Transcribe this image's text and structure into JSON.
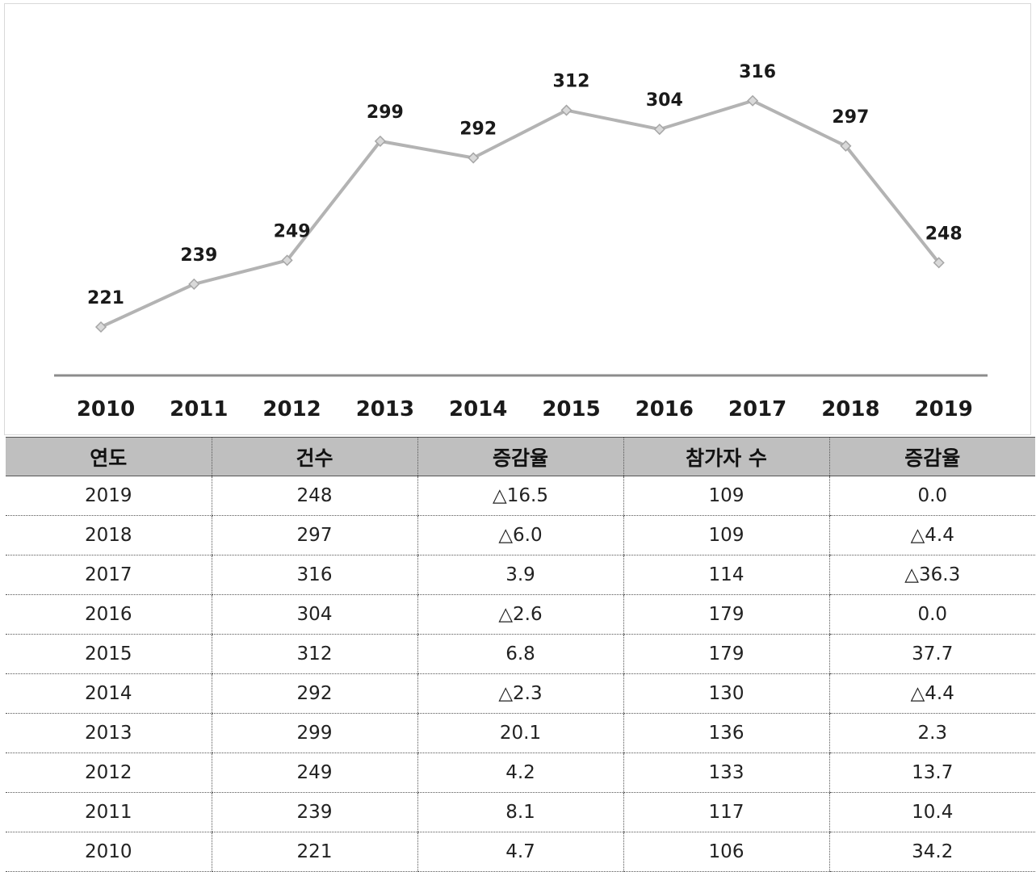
{
  "chart_data": {
    "type": "line",
    "categories": [
      "2010",
      "2011",
      "2012",
      "2013",
      "2014",
      "2015",
      "2016",
      "2017",
      "2018",
      "2019"
    ],
    "values": [
      221,
      239,
      249,
      299,
      292,
      312,
      304,
      316,
      297,
      248
    ],
    "data_labels": [
      "221",
      "239",
      "249",
      "299",
      "292",
      "312",
      "304",
      "316",
      "297",
      "248"
    ],
    "ylim": [
      180,
      340
    ],
    "grid": false,
    "legend": "none",
    "colors": {
      "line": "#b3b3b3",
      "marker": "#d9d9d9",
      "marker_stroke": "#a6a6a6",
      "axis": "#8c8c8c"
    }
  },
  "table": {
    "headers": [
      "연도",
      "건수",
      "증감율",
      "참가자 수",
      "증감율"
    ],
    "rows": [
      [
        "2019",
        "248",
        "△16.5",
        "109",
        "0.0"
      ],
      [
        "2018",
        "297",
        "△6.0",
        "109",
        "△4.4"
      ],
      [
        "2017",
        "316",
        "3.9",
        "114",
        "△36.3"
      ],
      [
        "2016",
        "304",
        "△2.6",
        "179",
        "0.0"
      ],
      [
        "2015",
        "312",
        "6.8",
        "179",
        "37.7"
      ],
      [
        "2014",
        "292",
        "△2.3",
        "130",
        "△4.4"
      ],
      [
        "2013",
        "299",
        "20.1",
        "136",
        "2.3"
      ],
      [
        "2012",
        "249",
        "4.2",
        "133",
        "13.7"
      ],
      [
        "2011",
        "239",
        "8.1",
        "117",
        "10.4"
      ],
      [
        "2010",
        "221",
        "4.7",
        "106",
        "34.2"
      ]
    ]
  }
}
